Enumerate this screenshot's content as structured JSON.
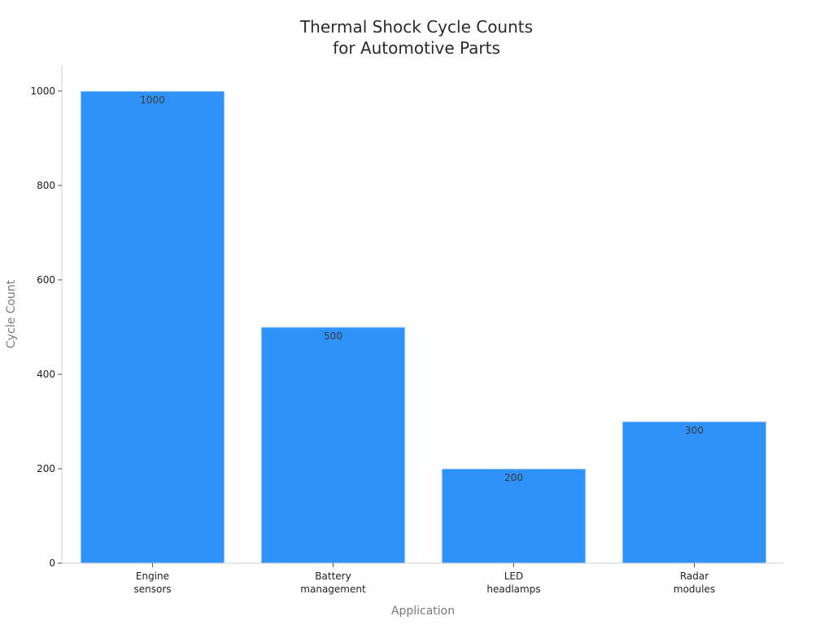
{
  "chart_data": {
    "type": "bar",
    "title": [
      "Thermal Shock Cycle Counts",
      "for Automotive Parts"
    ],
    "xlabel": "Application",
    "ylabel": "Cycle Count",
    "categories": [
      [
        "Engine",
        "sensors"
      ],
      [
        "Battery",
        "management"
      ],
      [
        "LED",
        "headlamps"
      ],
      [
        "Radar",
        "modules"
      ]
    ],
    "values": [
      1000,
      500,
      200,
      300
    ],
    "data_labels": [
      "1000",
      "500",
      "200",
      "300"
    ],
    "ylim": [
      0,
      1055
    ],
    "yticks": [
      0,
      200,
      400,
      600,
      800,
      1000
    ],
    "grid": false,
    "legend": "none",
    "colors": {
      "bar": "#2e92f8",
      "bar_edge": "#e6f1fe"
    }
  }
}
